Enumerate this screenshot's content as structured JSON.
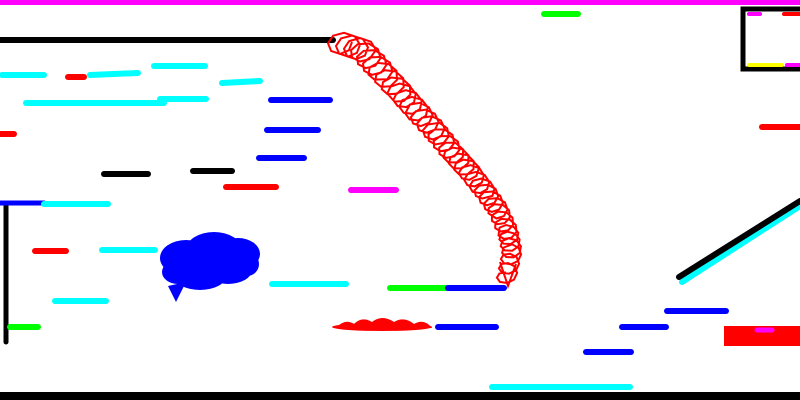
{
  "game": {
    "kind": "line-rider-style drawing canvas",
    "background": "#ffffff"
  },
  "palette": {
    "black": "#000000",
    "blue": "#0000ff",
    "cyan": "#00ffff",
    "red": "#ff0000",
    "green": "#00ff00",
    "magenta": "#ff00ff",
    "yellow": "#ffff00"
  },
  "elements": {
    "ceiling_line": {
      "color": "magenta"
    },
    "floor_line": {
      "color": "black"
    },
    "top_left_platform": {
      "color": "black"
    },
    "left_wall": {
      "color": "black"
    },
    "ramp_line": {
      "colors": [
        "black",
        "cyan"
      ]
    },
    "exit_box": {
      "border": "black",
      "accents": [
        "magenta",
        "red",
        "yellow",
        "magenta"
      ]
    },
    "scribble_trail": {
      "color": "red"
    },
    "blue_cloud": {
      "color": "blue"
    },
    "red_splatter": {
      "color": "red"
    }
  },
  "dashes": [
    {
      "color": "green"
    },
    {
      "color": "cyan"
    },
    {
      "color": "red"
    },
    {
      "color": "cyan"
    },
    {
      "color": "cyan"
    },
    {
      "color": "cyan"
    },
    {
      "color": "cyan"
    },
    {
      "color": "cyan"
    },
    {
      "color": "red"
    },
    {
      "color": "blue"
    },
    {
      "color": "blue"
    },
    {
      "color": "blue"
    },
    {
      "color": "black"
    },
    {
      "color": "black"
    },
    {
      "color": "red"
    },
    {
      "color": "magenta"
    },
    {
      "color": "blue"
    },
    {
      "color": "cyan"
    },
    {
      "color": "red"
    },
    {
      "color": "cyan"
    },
    {
      "color": "cyan"
    },
    {
      "color": "cyan"
    },
    {
      "color": "green"
    },
    {
      "color": "blue"
    },
    {
      "color": "green"
    },
    {
      "color": "blue"
    },
    {
      "color": "red"
    },
    {
      "color": "blue"
    },
    {
      "color": "blue"
    },
    {
      "color": "blue"
    },
    {
      "color": "cyan"
    },
    {
      "color": "red"
    }
  ]
}
